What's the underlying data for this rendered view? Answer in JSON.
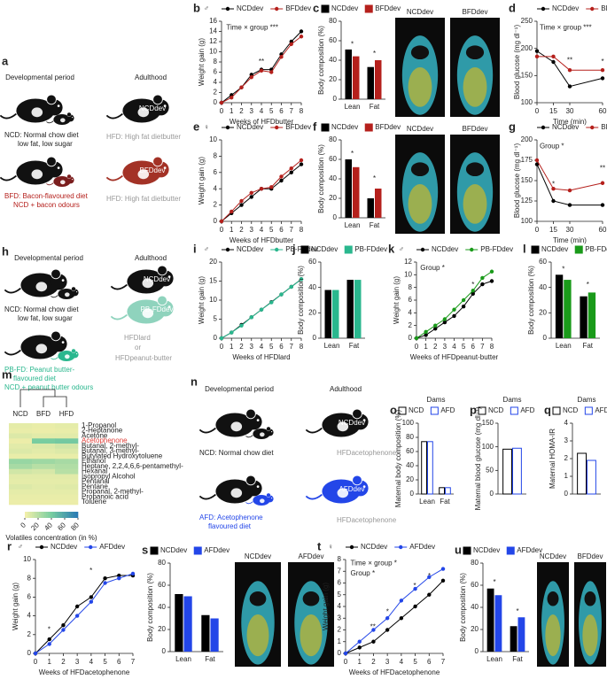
{
  "diagrams": {
    "a": {
      "panel": "a",
      "labels": [
        "Developmental period",
        "Adulthood",
        "NCDdev",
        "NCD: Normal chow diet",
        "low fat, low sugar",
        "HFD: High fat dietbutter",
        "BFDdev",
        "BFD: Bacon-flavoured diet",
        "NCD + bacon odours",
        "HFD: High fat dietbutter"
      ]
    },
    "h": {
      "panel": "h",
      "labels": [
        "Developmental period",
        "Adulthood",
        "NCDdev",
        "NCD: Normal chow diet",
        "low fat, low sugar",
        "PB-FDdev",
        "HFDlard",
        "or",
        "HFDpeanut-butter",
        "PB-FD: Peanut butter-",
        "flavoured diet",
        "NCD + peanut butter odours"
      ]
    },
    "n": {
      "panel": "n",
      "labels": [
        "Developmental period",
        "Adulthood",
        "NCDdev",
        "NCD: Normal chow diet",
        "HFDacetophenone",
        "AFDdev",
        "AFD: Acetophenone",
        "flavoured diet",
        "HFDacetophenone"
      ]
    }
  },
  "images": {
    "c": [
      "NCDdev",
      "BFDdev"
    ],
    "f": [
      "NCDdev",
      "BFDdev"
    ],
    "s": [
      "NCDdev",
      "AFDdev"
    ],
    "u": [
      "NCDdev",
      "BFDdev"
    ]
  },
  "chart_data": [
    {
      "panel": "b",
      "sex": "♂",
      "type": "line",
      "x_label": "Weeks of HFDbutter",
      "y_label": "Weight gain (g)",
      "x": [
        0,
        1,
        2,
        3,
        4,
        5,
        6,
        7,
        8
      ],
      "xlim": [
        0,
        8
      ],
      "xticks": [
        0,
        1,
        2,
        3,
        4,
        5,
        6,
        7,
        8
      ],
      "ylim": [
        0,
        16
      ],
      "yticks": [
        0,
        2,
        4,
        6,
        8,
        10,
        12,
        14,
        16
      ],
      "series": [
        {
          "name": "NCDdev",
          "color": "#000000",
          "values": [
            0,
            1.5,
            3,
            5.5,
            6.5,
            6.5,
            9.5,
            12,
            14
          ]
        },
        {
          "name": "BFDdev",
          "color": "#b5201c",
          "values": [
            0,
            1,
            3,
            5,
            6.3,
            6,
            9,
            11.5,
            13
          ]
        }
      ],
      "annotations": [
        "Time × group ***",
        "**"
      ]
    },
    {
      "panel": "c",
      "type": "bar",
      "y_label": "Body composition (%)",
      "categories": [
        "Lean",
        "Fat"
      ],
      "ylim": [
        0,
        80
      ],
      "yticks": [
        0,
        20,
        40,
        60,
        80
      ],
      "series": [
        {
          "name": "NCDdev",
          "color": "#000000",
          "values": [
            51,
            33
          ]
        },
        {
          "name": "BFDdev",
          "color": "#b5201c",
          "values": [
            44,
            40
          ]
        }
      ],
      "annotations": [
        "*",
        "*"
      ]
    },
    {
      "panel": "d",
      "type": "line",
      "x_label": "Time (min)",
      "y_label": "Blood glucose (mg dl⁻¹)",
      "x": [
        0,
        15,
        30,
        60
      ],
      "xlim": [
        0,
        60
      ],
      "xticks": [
        0,
        15,
        30,
        60
      ],
      "ylim": [
        100,
        250
      ],
      "yticks": [
        100,
        150,
        200,
        250
      ],
      "series": [
        {
          "name": "NCDdev",
          "color": "#000000",
          "values": [
            195,
            175,
            130,
            145
          ]
        },
        {
          "name": "BFDdev",
          "color": "#b5201c",
          "values": [
            185,
            185,
            160,
            160
          ]
        }
      ],
      "annotations": [
        "Time × group ***",
        "**",
        "*"
      ]
    },
    {
      "panel": "e",
      "sex": "♀",
      "type": "line",
      "x_label": "Weeks of HFDbutter",
      "y_label": "Weight gain (g)",
      "x": [
        0,
        1,
        2,
        3,
        4,
        5,
        6,
        7,
        8
      ],
      "xlim": [
        0,
        8
      ],
      "xticks": [
        0,
        1,
        2,
        3,
        4,
        5,
        6,
        7,
        8
      ],
      "ylim": [
        0,
        10
      ],
      "yticks": [
        0,
        2,
        4,
        6,
        8,
        10
      ],
      "series": [
        {
          "name": "NCDdev",
          "color": "#000000",
          "values": [
            0,
            1,
            2,
            3,
            4,
            4,
            5,
            6,
            7
          ]
        },
        {
          "name": "BFDdev",
          "color": "#b5201c",
          "values": [
            0,
            1.2,
            2.5,
            3.5,
            4,
            4.2,
            5.5,
            6.5,
            7.5
          ]
        }
      ],
      "annotations": []
    },
    {
      "panel": "f",
      "type": "bar",
      "y_label": "Body composition (%)",
      "categories": [
        "Lean",
        "Fat"
      ],
      "ylim": [
        0,
        80
      ],
      "yticks": [
        0,
        20,
        40,
        60,
        80
      ],
      "series": [
        {
          "name": "NCDdev",
          "color": "#000000",
          "values": [
            60,
            20
          ]
        },
        {
          "name": "BFDdev",
          "color": "#b5201c",
          "values": [
            52,
            30
          ]
        }
      ],
      "annotations": [
        "*",
        "*"
      ]
    },
    {
      "panel": "g",
      "type": "line",
      "x_label": "Time (min)",
      "y_label": "Blood glucose (mg dl⁻¹)",
      "x": [
        0,
        15,
        30,
        60
      ],
      "xlim": [
        0,
        60
      ],
      "xticks": [
        0,
        15,
        30,
        60
      ],
      "ylim": [
        100,
        200
      ],
      "yticks": [
        100,
        125,
        150,
        175,
        200
      ],
      "series": [
        {
          "name": "NCDdev",
          "color": "#000000",
          "values": [
            170,
            125,
            120,
            120
          ]
        },
        {
          "name": "BFDdev",
          "color": "#b5201c",
          "values": [
            175,
            140,
            138,
            147
          ]
        }
      ],
      "annotations": [
        "Group *",
        "*",
        "**"
      ]
    },
    {
      "panel": "i",
      "sex": "♂",
      "type": "line",
      "x_label": "Weeks of HFDlard",
      "y_label": "Weight gain (g)",
      "x": [
        0,
        1,
        2,
        3,
        4,
        5,
        6,
        7,
        8
      ],
      "xlim": [
        0,
        8
      ],
      "xticks": [
        0,
        1,
        2,
        3,
        4,
        5,
        6,
        7,
        8
      ],
      "ylim": [
        0,
        20
      ],
      "yticks": [
        0,
        5,
        10,
        15,
        20
      ],
      "series": [
        {
          "name": "NCDdev",
          "color": "#000000",
          "values": [
            0,
            1.5,
            3.5,
            5.5,
            7.5,
            9.5,
            11.5,
            13.5,
            15.5
          ]
        },
        {
          "name": "PB-FDdev",
          "color": "#2ab78e",
          "values": [
            0,
            1.5,
            3.3,
            5.5,
            7.5,
            9.4,
            11.5,
            13.5,
            15.5
          ]
        }
      ],
      "annotations": []
    },
    {
      "panel": "j",
      "type": "bar",
      "y_label": "Body composition (%)",
      "categories": [
        "Lean",
        "Fat"
      ],
      "ylim": [
        0,
        60
      ],
      "yticks": [
        0,
        20,
        40,
        60
      ],
      "series": [
        {
          "name": "NCDdev",
          "color": "#000000",
          "values": [
            38,
            46
          ]
        },
        {
          "name": "PB-FDdev",
          "color": "#2ab78e",
          "values": [
            38,
            46
          ]
        }
      ],
      "annotations": []
    },
    {
      "panel": "k",
      "sex": "♂",
      "type": "line",
      "x_label": "Weeks of HFDpeanut-butter",
      "y_label": "Weight gain (g)",
      "x": [
        0,
        1,
        2,
        3,
        4,
        5,
        6,
        7,
        8
      ],
      "xlim": [
        0,
        8
      ],
      "xticks": [
        0,
        1,
        2,
        3,
        4,
        5,
        6,
        7,
        8
      ],
      "ylim": [
        0,
        12
      ],
      "yticks": [
        0,
        2,
        4,
        6,
        8,
        10,
        12
      ],
      "series": [
        {
          "name": "NCDdev",
          "color": "#000000",
          "values": [
            0,
            0.5,
            1.5,
            2.5,
            3.5,
            5,
            7,
            8.5,
            9
          ]
        },
        {
          "name": "PB-FDdev",
          "color": "#1a9a1a",
          "values": [
            0,
            1,
            2,
            3,
            4.5,
            6,
            7.5,
            9.5,
            10.5
          ]
        }
      ],
      "annotations": [
        "Group *",
        "*",
        "*"
      ]
    },
    {
      "panel": "l",
      "type": "bar",
      "y_label": "Body composition (%)",
      "categories": [
        "Lean",
        "Fat"
      ],
      "ylim": [
        0,
        60
      ],
      "yticks": [
        0,
        20,
        40,
        60
      ],
      "series": [
        {
          "name": "NCDdev",
          "color": "#000000",
          "values": [
            50,
            33
          ]
        },
        {
          "name": "PB-FDdev",
          "color": "#1a9a1a",
          "values": [
            46,
            36
          ]
        }
      ],
      "annotations": [
        "*",
        "*"
      ]
    },
    {
      "panel": "m",
      "type": "heatmap",
      "columns": [
        "NCD",
        "BFD",
        "HFD"
      ],
      "rows": [
        "1-Propanol",
        "2-Heptanone",
        "Acetone",
        "Acetophenone",
        "Butanal, 2-methyl-",
        "Butanal, 3-methyl-",
        "Butylated Hydroxytoluene",
        "Ethanol",
        "Heptane, 2,2,4,6,6-pentamethyl-",
        "Hexanal",
        "Isopropyl Alcohol",
        "Pentanal",
        "Pentane",
        "Propanal, 2-methyl-",
        "Propanoic acid",
        "Toluene"
      ],
      "values": [
        [
          5,
          4,
          5
        ],
        [
          4,
          3,
          4
        ],
        [
          8,
          6,
          6
        ],
        [
          3,
          40,
          42
        ],
        [
          6,
          8,
          12
        ],
        [
          8,
          6,
          8
        ],
        [
          4,
          4,
          4
        ],
        [
          30,
          28,
          25
        ],
        [
          25,
          20,
          22
        ],
        [
          12,
          10,
          20
        ],
        [
          6,
          6,
          6
        ],
        [
          5,
          5,
          5
        ],
        [
          8,
          6,
          7
        ],
        [
          5,
          5,
          5
        ],
        [
          4,
          4,
          4
        ],
        [
          3,
          3,
          3
        ]
      ],
      "highlight_row": "Acetophenone",
      "highlight_color": "#e0403a",
      "colorbar_ticks": [
        0,
        20,
        40,
        60,
        80
      ],
      "colorbar_label": "Volatiles concentration (in %)"
    },
    {
      "panel": "o",
      "type": "bar",
      "hollow": true,
      "title": "Dams",
      "y_label": "Maternal body composition (%)",
      "categories": [
        "Lean",
        "Fat"
      ],
      "ylim": [
        0,
        100
      ],
      "yticks": [
        0,
        20,
        40,
        60,
        80,
        100
      ],
      "series": [
        {
          "name": "NCD",
          "color": "#000000",
          "values": [
            74,
            9
          ]
        },
        {
          "name": "AFD",
          "color": "#2346e8",
          "values": [
            74,
            9
          ]
        }
      ],
      "annotations": []
    },
    {
      "panel": "p",
      "type": "bar",
      "hollow": true,
      "title": "Dams",
      "y_label": "Maternal blood glucose (mg dl⁻¹)",
      "categories": [
        null
      ],
      "ylim": [
        0,
        150
      ],
      "yticks": [
        0,
        50,
        100,
        150
      ],
      "series": [
        {
          "name": "NCD",
          "color": "#000000",
          "values": [
            95
          ]
        },
        {
          "name": "AFD",
          "color": "#2346e8",
          "values": [
            97
          ]
        }
      ],
      "annotations": []
    },
    {
      "panel": "q",
      "type": "bar",
      "hollow": true,
      "title": "Dams",
      "y_label": "Maternal HOMA-IR",
      "categories": [
        null
      ],
      "ylim": [
        0,
        4
      ],
      "yticks": [
        0,
        1,
        2,
        3,
        4
      ],
      "series": [
        {
          "name": "NCD",
          "color": "#000000",
          "values": [
            2.3
          ]
        },
        {
          "name": "AFD",
          "color": "#2346e8",
          "values": [
            1.9
          ]
        }
      ],
      "annotations": []
    },
    {
      "panel": "r",
      "sex": "♂",
      "type": "line",
      "x_label": "Weeks of HFDacetophenone",
      "y_label": "Weight gain (g)",
      "x": [
        0,
        1,
        2,
        3,
        4,
        5,
        6,
        7
      ],
      "xlim": [
        0,
        7
      ],
      "xticks": [
        0,
        1,
        2,
        3,
        4,
        5,
        6,
        7
      ],
      "ylim": [
        0,
        10
      ],
      "yticks": [
        0,
        2,
        4,
        6,
        8,
        10
      ],
      "series": [
        {
          "name": "NCDdev",
          "color": "#000000",
          "values": [
            0,
            1.5,
            3,
            5,
            6,
            8,
            8.3,
            8.3
          ]
        },
        {
          "name": "AFDdev",
          "color": "#2346e8",
          "values": [
            0,
            1,
            2.5,
            4,
            5.5,
            7.5,
            8,
            8.5
          ]
        }
      ],
      "annotations": [
        "*",
        "*"
      ]
    },
    {
      "panel": "s",
      "type": "bar",
      "y_label": "Body composition (%)",
      "categories": [
        "Lean",
        "Fat"
      ],
      "ylim": [
        0,
        80
      ],
      "yticks": [
        0,
        20,
        40,
        60,
        80
      ],
      "series": [
        {
          "name": "NCDdev",
          "color": "#000000",
          "values": [
            52,
            33
          ]
        },
        {
          "name": "AFDdev",
          "color": "#2346e8",
          "values": [
            50,
            30
          ]
        }
      ],
      "annotations": []
    },
    {
      "panel": "t",
      "sex": "♀",
      "type": "line",
      "x_label": "Weeks of HFDacetophenone",
      "y_label": "Weight gain (g)",
      "x": [
        0,
        1,
        2,
        3,
        4,
        5,
        6,
        7
      ],
      "xlim": [
        0,
        7
      ],
      "xticks": [
        0,
        1,
        2,
        3,
        4,
        5,
        6,
        7
      ],
      "ylim": [
        0,
        8
      ],
      "yticks": [
        0,
        1,
        2,
        3,
        4,
        5,
        6,
        7,
        8
      ],
      "series": [
        {
          "name": "NCDdev",
          "color": "#000000",
          "values": [
            0,
            0.5,
            1,
            2,
            3,
            4,
            5,
            6.2
          ]
        },
        {
          "name": "AFDdev",
          "color": "#2346e8",
          "values": [
            0,
            1,
            2,
            3,
            4.5,
            5.5,
            6.5,
            7.2
          ]
        }
      ],
      "annotations": [
        "Time × group *",
        "Group *",
        "**",
        "*",
        "*",
        "*"
      ]
    },
    {
      "panel": "u",
      "type": "bar",
      "y_label": "Body composition (%)",
      "categories": [
        "Lean",
        "Fat"
      ],
      "ylim": [
        0,
        80
      ],
      "yticks": [
        0,
        20,
        40,
        60,
        80
      ],
      "series": [
        {
          "name": "NCDdev",
          "color": "#000000",
          "values": [
            57,
            23
          ]
        },
        {
          "name": "AFDdev",
          "color": "#2346e8",
          "values": [
            51,
            31
          ]
        }
      ],
      "annotations": [
        "*",
        "*"
      ]
    }
  ]
}
